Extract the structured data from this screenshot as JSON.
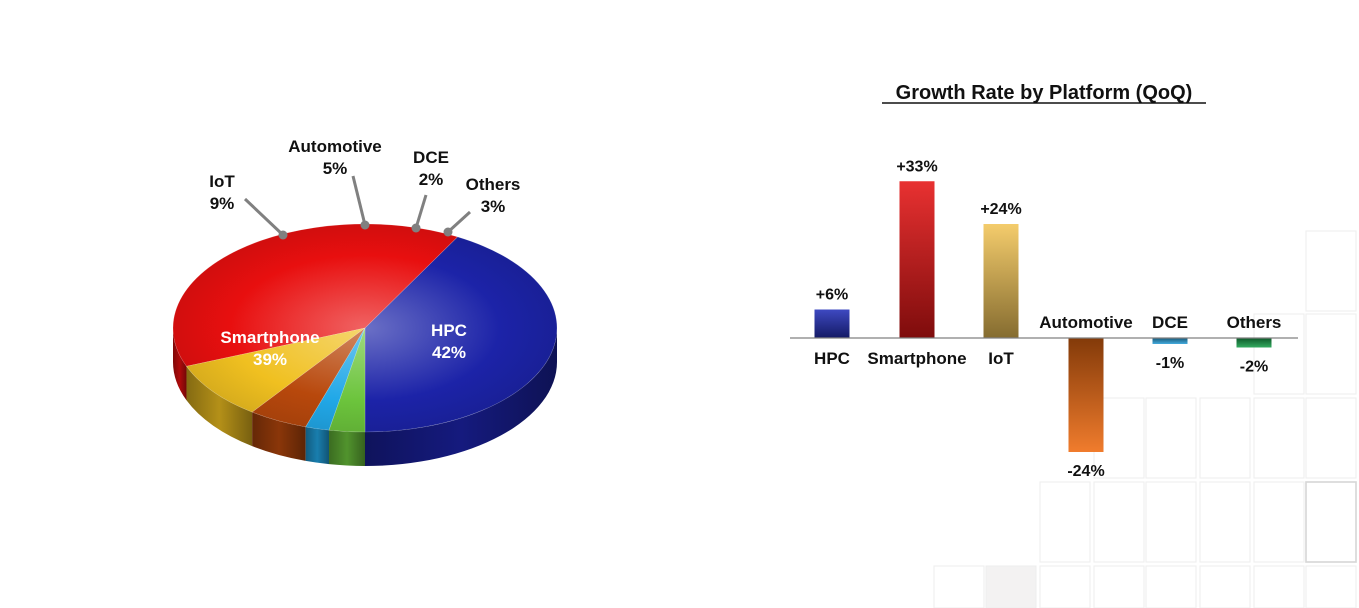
{
  "colors": {
    "hpc": "#1c23a8",
    "smartphone": "#e80f0f",
    "iot": "#f0c020",
    "automotive": "#b8480c",
    "dce": "#21a8e8",
    "others": "#6cc43c",
    "bar_hpc": "#2430b8",
    "bar_smartphone": "#e51515",
    "bar_iot": "#f2c558",
    "bar_automotive": "#ee6a10",
    "bar_dce": "#2aa0d8",
    "bar_others": "#17a04a",
    "leader": "#808080",
    "axis": "#808080"
  },
  "chart_data": [
    {
      "type": "pie",
      "title": "",
      "slices": [
        {
          "name": "HPC",
          "value": 42,
          "label": "42%",
          "color_key": "hpc"
        },
        {
          "name": "Smartphone",
          "value": 39,
          "label": "39%",
          "color_key": "smartphone"
        },
        {
          "name": "IoT",
          "value": 9,
          "label": "9%",
          "color_key": "iot"
        },
        {
          "name": "Automotive",
          "value": 5,
          "label": "5%",
          "color_key": "automotive"
        },
        {
          "name": "DCE",
          "value": 2,
          "label": "2%",
          "color_key": "dce"
        },
        {
          "name": "Others",
          "value": 3,
          "label": "3%",
          "color_key": "others"
        }
      ],
      "style": "3d"
    },
    {
      "type": "bar",
      "title": "Growth Rate by Platform (QoQ)",
      "xlabel": "",
      "ylabel": "",
      "categories": [
        "HPC",
        "Smartphone",
        "IoT",
        "Automotive",
        "DCE",
        "Others"
      ],
      "values": [
        6,
        33,
        24,
        -24,
        -1,
        -2
      ],
      "value_labels": [
        "+6%",
        "+33%",
        "+24%",
        "-24%",
        "-1%",
        "-2%"
      ],
      "color_keys": [
        "bar_hpc",
        "bar_smartphone",
        "bar_iot",
        "bar_automotive",
        "bar_dce",
        "bar_others"
      ],
      "grid": false,
      "legend": "none"
    }
  ]
}
